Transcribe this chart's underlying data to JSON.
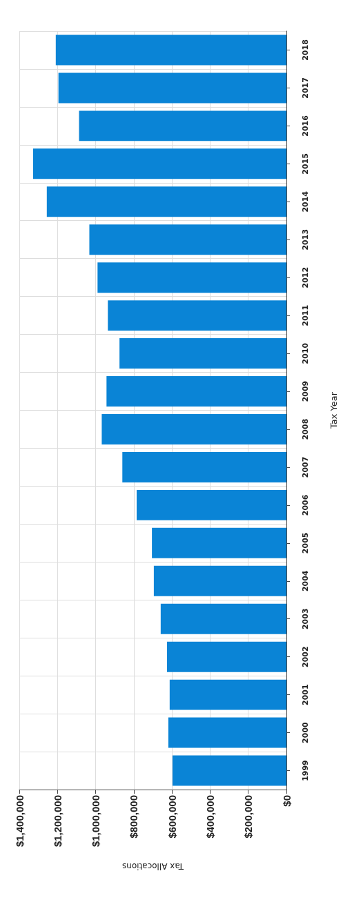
{
  "chart_data": {
    "type": "bar",
    "orientation": "horizontal",
    "xlabel": "Tax Allocations",
    "ylabel": "Tax Year",
    "categories": [
      "2018",
      "2017",
      "2016",
      "2015",
      "2014",
      "2013",
      "2012",
      "2011",
      "2010",
      "2009",
      "2008",
      "2007",
      "2006",
      "2005",
      "2004",
      "2003",
      "2002",
      "2001",
      "2000",
      "1999"
    ],
    "values": [
      1209000,
      1195000,
      1087000,
      1328000,
      1256000,
      1033000,
      990000,
      936000,
      875000,
      943000,
      968000,
      860000,
      785000,
      705000,
      695000,
      659000,
      626000,
      612000,
      619000,
      597000
    ],
    "color": "#0a84d6",
    "xlim": [
      1400000,
      0
    ],
    "xticks": [
      {
        "value": 0,
        "label": "$0"
      },
      {
        "value": 200000,
        "label": "$200,000"
      },
      {
        "value": 400000,
        "label": "$400,000"
      },
      {
        "value": 600000,
        "label": "$600,000"
      },
      {
        "value": 800000,
        "label": "$800,000"
      },
      {
        "value": 1000000,
        "label": "$1,000,000"
      },
      {
        "value": 1200000,
        "label": "$1,200,000"
      },
      {
        "value": 1400000,
        "label": "$1,400,000"
      }
    ],
    "grid": true
  }
}
